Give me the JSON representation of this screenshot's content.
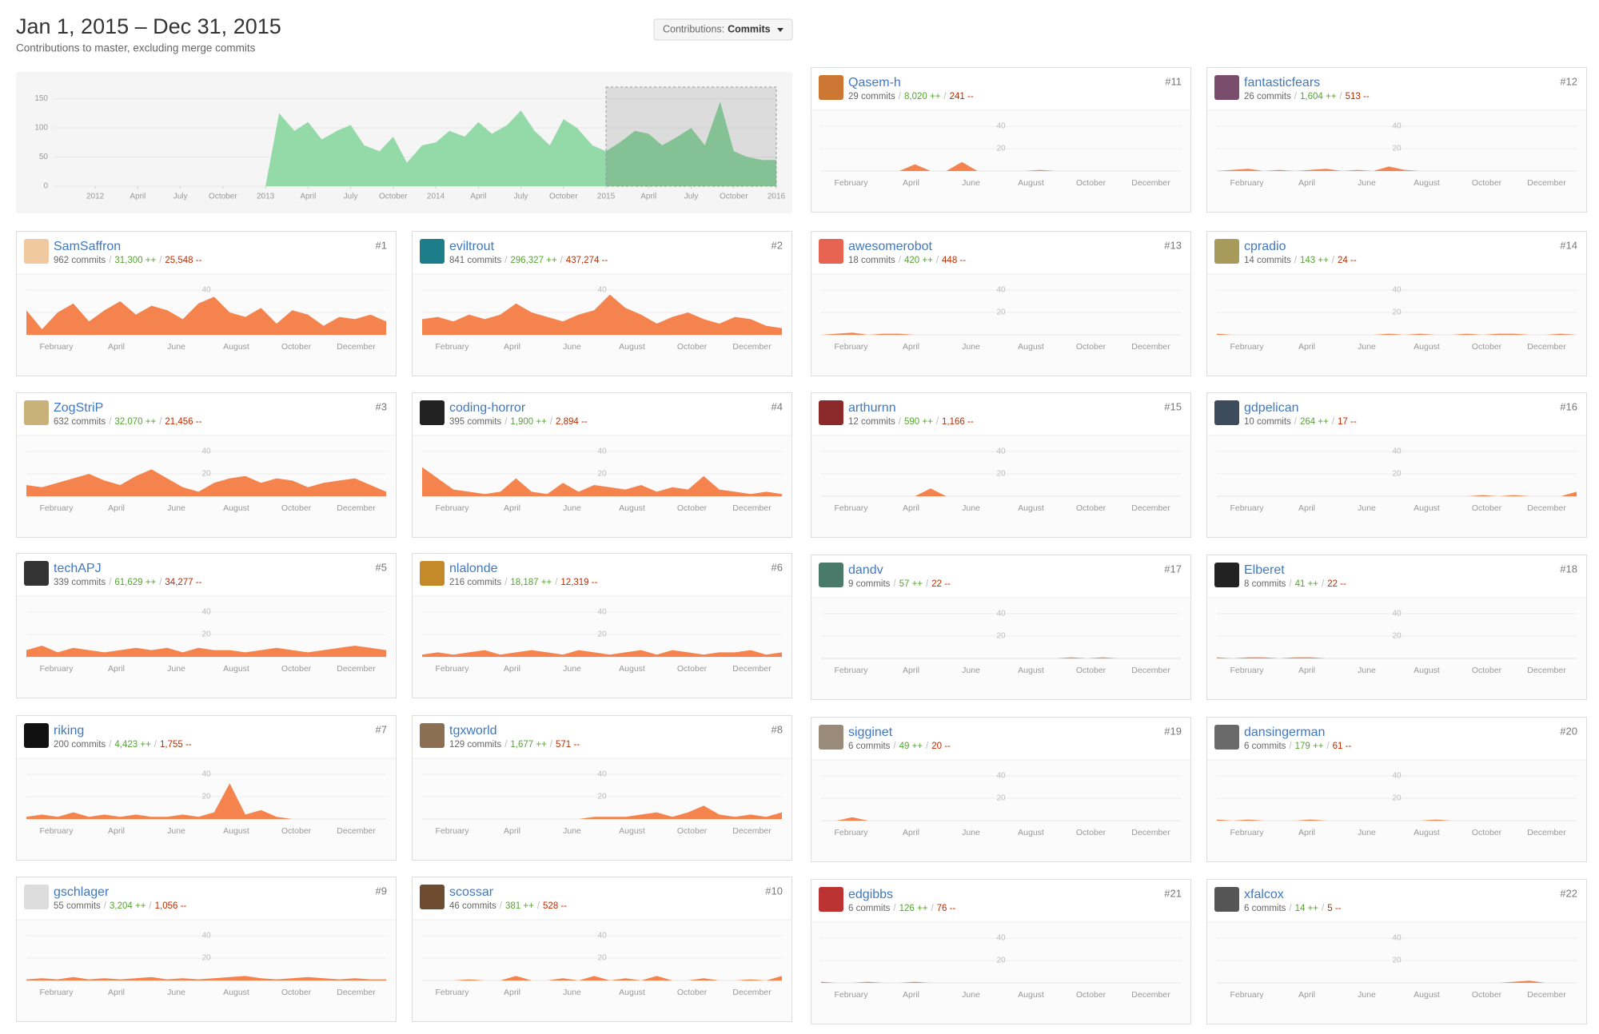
{
  "header": {
    "title": "Jan 1, 2015 – Dec 31, 2015",
    "subtitle": "Contributions to master, excluding merge commits",
    "dropdown_label": "Contributions:",
    "dropdown_value": "Commits"
  },
  "overview": {
    "type": "area",
    "color": "#94d9a8",
    "selection_color": "#79c48f",
    "grid": true,
    "xlim": [
      2011.76,
      2016
    ],
    "ylim": [
      0,
      170
    ],
    "yticks": [
      0,
      50,
      100,
      150
    ],
    "xticks": [
      2012,
      {
        "value": 2012.25,
        "label": "April"
      },
      {
        "value": 2012.5,
        "label": "July"
      },
      {
        "value": 2012.75,
        "label": "October"
      },
      2013,
      {
        "value": 2013.25,
        "label": "April"
      },
      {
        "value": 2013.5,
        "label": "July"
      },
      {
        "value": 2013.75,
        "label": "October"
      },
      2014,
      {
        "value": 2014.25,
        "label": "April"
      },
      {
        "value": 2014.5,
        "label": "July"
      },
      {
        "value": 2014.75,
        "label": "October"
      },
      2015,
      {
        "value": 2015.25,
        "label": "April"
      },
      {
        "value": 2015.5,
        "label": "July"
      },
      {
        "value": 2015.75,
        "label": "October"
      },
      2016
    ],
    "selection": [
      2015,
      2016
    ],
    "x": [
      2013,
      2013.08,
      2013.17,
      2013.25,
      2013.33,
      2013.42,
      2013.5,
      2013.58,
      2013.67,
      2013.75,
      2013.83,
      2013.92,
      2014,
      2014.08,
      2014.17,
      2014.25,
      2014.33,
      2014.42,
      2014.5,
      2014.58,
      2014.67,
      2014.75,
      2014.83,
      2014.92,
      2015,
      2015.08,
      2015.17,
      2015.25,
      2015.33,
      2015.42,
      2015.5,
      2015.58,
      2015.67,
      2015.75,
      2015.83,
      2015.92,
      2016
    ],
    "values": [
      0,
      125,
      95,
      110,
      80,
      95,
      105,
      70,
      60,
      85,
      40,
      70,
      75,
      95,
      85,
      110,
      90,
      105,
      130,
      95,
      70,
      115,
      100,
      70,
      60,
      75,
      95,
      90,
      70,
      85,
      100,
      70,
      145,
      60,
      50,
      45,
      45
    ]
  },
  "card_chart": {
    "type": "area",
    "color": "#f4834d",
    "ylim": [
      0,
      50
    ],
    "yticks": [
      20,
      40
    ],
    "months": [
      "February",
      "April",
      "June",
      "August",
      "October",
      "December"
    ]
  },
  "stats_separator": "/",
  "contributors": [
    {
      "rank": "#1",
      "name": "SamSaffron",
      "commits": "962 commits",
      "additions": "31,300 ++",
      "deletions": "25,548 --",
      "values": [
        22,
        5,
        20,
        28,
        12,
        22,
        30,
        18,
        26,
        22,
        14,
        28,
        34,
        20,
        16,
        24,
        10,
        22,
        18,
        8,
        16,
        14,
        18,
        12
      ]
    },
    {
      "rank": "#2",
      "name": "eviltrout",
      "commits": "841 commits",
      "additions": "296,327 ++",
      "deletions": "437,274 --",
      "values": [
        14,
        16,
        12,
        18,
        14,
        18,
        28,
        20,
        16,
        12,
        18,
        22,
        36,
        24,
        18,
        10,
        16,
        20,
        14,
        10,
        16,
        14,
        8,
        6
      ]
    },
    {
      "rank": "#3",
      "name": "ZogStriP",
      "commits": "632 commits",
      "additions": "32,070 ++",
      "deletions": "21,456 --",
      "values": [
        10,
        8,
        12,
        16,
        20,
        14,
        10,
        18,
        24,
        16,
        8,
        4,
        12,
        16,
        18,
        12,
        16,
        14,
        8,
        12,
        14,
        16,
        10,
        4
      ]
    },
    {
      "rank": "#4",
      "name": "coding-horror",
      "commits": "395 commits",
      "additions": "1,900 ++",
      "deletions": "2,894 --",
      "values": [
        26,
        16,
        6,
        4,
        2,
        4,
        16,
        4,
        2,
        12,
        4,
        10,
        8,
        6,
        10,
        4,
        8,
        6,
        18,
        6,
        4,
        2,
        4,
        2
      ]
    },
    {
      "rank": "#5",
      "name": "techAPJ",
      "commits": "339 commits",
      "additions": "61,629 ++",
      "deletions": "34,277 --",
      "values": [
        6,
        10,
        4,
        8,
        6,
        4,
        6,
        8,
        6,
        8,
        4,
        8,
        6,
        6,
        4,
        6,
        8,
        6,
        4,
        6,
        8,
        10,
        8,
        6
      ]
    },
    {
      "rank": "#6",
      "name": "nlalonde",
      "commits": "216 commits",
      "additions": "18,187 ++",
      "deletions": "12,319 --",
      "values": [
        2,
        4,
        2,
        4,
        6,
        2,
        4,
        6,
        4,
        2,
        6,
        4,
        2,
        4,
        6,
        2,
        6,
        4,
        2,
        4,
        4,
        6,
        2,
        4
      ]
    },
    {
      "rank": "#7",
      "name": "riking",
      "commits": "200 commits",
      "additions": "4,423 ++",
      "deletions": "1,755 --",
      "values": [
        2,
        4,
        2,
        6,
        2,
        4,
        2,
        4,
        2,
        2,
        4,
        2,
        6,
        32,
        4,
        8,
        2,
        0,
        0,
        0,
        0,
        0,
        0,
        0
      ]
    },
    {
      "rank": "#8",
      "name": "tgxworld",
      "commits": "129 commits",
      "additions": "1,677 ++",
      "deletions": "571 --",
      "values": [
        0,
        0,
        0,
        0,
        0,
        0,
        0,
        0,
        0,
        0,
        0,
        2,
        2,
        2,
        4,
        6,
        2,
        6,
        12,
        4,
        2,
        4,
        2,
        6
      ]
    },
    {
      "rank": "#9",
      "name": "gschlager",
      "commits": "55 commits",
      "additions": "3,204 ++",
      "deletions": "1,056 --",
      "values": [
        1,
        2,
        1,
        3,
        1,
        2,
        1,
        2,
        3,
        1,
        2,
        1,
        2,
        3,
        4,
        2,
        1,
        2,
        3,
        2,
        1,
        2,
        1,
        1
      ]
    },
    {
      "rank": "#10",
      "name": "scossar",
      "commits": "46 commits",
      "additions": "381 ++",
      "deletions": "528 --",
      "values": [
        0,
        0,
        0,
        1,
        0,
        0,
        4,
        0,
        0,
        2,
        0,
        4,
        0,
        2,
        0,
        4,
        0,
        0,
        2,
        0,
        0,
        1,
        0,
        4
      ]
    },
    {
      "rank": "#11",
      "name": "Qasem-h",
      "commits": "29 commits",
      "additions": "8,020 ++",
      "deletions": "241 --",
      "values": [
        0,
        0,
        0,
        0,
        0,
        0,
        6,
        0,
        0,
        8,
        0,
        0,
        0,
        0,
        1,
        0,
        0,
        0,
        0,
        0,
        0,
        0,
        0,
        0
      ]
    },
    {
      "rank": "#12",
      "name": "fantasticfears",
      "commits": "26 commits",
      "additions": "1,604 ++",
      "deletions": "513 --",
      "values": [
        0,
        1,
        2,
        0,
        1,
        0,
        1,
        2,
        0,
        1,
        0,
        4,
        1,
        0,
        0,
        0,
        0,
        0,
        0,
        0,
        0,
        0,
        0,
        0
      ]
    },
    {
      "rank": "#13",
      "name": "awesomerobot",
      "commits": "18 commits",
      "additions": "420 ++",
      "deletions": "448 --",
      "values": [
        0,
        1,
        2,
        0,
        1,
        1,
        0,
        0,
        0,
        0,
        0,
        0,
        0,
        0,
        0,
        0,
        0,
        0,
        0,
        0,
        0,
        0,
        0,
        0
      ]
    },
    {
      "rank": "#14",
      "name": "cpradio",
      "commits": "14 commits",
      "additions": "143 ++",
      "deletions": "24 --",
      "values": [
        1,
        0,
        0,
        0,
        0,
        0,
        0,
        0,
        0,
        0,
        0,
        1,
        0,
        1,
        0,
        0,
        1,
        0,
        1,
        1,
        0,
        0,
        1,
        0
      ]
    },
    {
      "rank": "#15",
      "name": "arthurnn",
      "commits": "12 commits",
      "additions": "590 ++",
      "deletions": "1,166 --",
      "values": [
        0,
        0,
        0,
        0,
        0,
        0,
        0,
        7,
        0,
        0,
        0,
        0,
        0,
        0,
        0,
        0,
        0,
        0,
        0,
        0,
        0,
        0,
        0,
        0
      ]
    },
    {
      "rank": "#16",
      "name": "gdpelican",
      "commits": "10 commits",
      "additions": "264 ++",
      "deletions": "17 --",
      "values": [
        0,
        0,
        0,
        0,
        0,
        0,
        0,
        0,
        0,
        0,
        0,
        0,
        0,
        0,
        0,
        0,
        0,
        1,
        0,
        1,
        0,
        0,
        0,
        4
      ]
    },
    {
      "rank": "#17",
      "name": "dandv",
      "commits": "9 commits",
      "additions": "57 ++",
      "deletions": "22 --",
      "values": [
        0,
        0,
        0,
        0,
        0,
        0,
        0,
        0,
        0,
        0,
        0,
        0,
        0,
        0,
        0,
        0,
        1,
        0,
        1,
        0,
        0,
        0,
        0,
        0
      ]
    },
    {
      "rank": "#18",
      "name": "Elberet",
      "commits": "8 commits",
      "additions": "41 ++",
      "deletions": "22 --",
      "values": [
        1,
        0,
        1,
        1,
        0,
        1,
        1,
        0,
        0,
        0,
        0,
        0,
        0,
        0,
        0,
        0,
        0,
        0,
        0,
        0,
        0,
        0,
        0,
        0
      ]
    },
    {
      "rank": "#19",
      "name": "sigginet",
      "commits": "6 commits",
      "additions": "49 ++",
      "deletions": "20 --",
      "values": [
        0,
        0,
        3,
        0,
        0,
        0,
        0,
        0,
        0,
        0,
        0,
        0,
        0,
        0,
        0,
        0,
        0,
        0,
        0,
        0,
        0,
        0,
        0,
        0
      ]
    },
    {
      "rank": "#20",
      "name": "dansingerman",
      "commits": "6 commits",
      "additions": "179 ++",
      "deletions": "61 --",
      "values": [
        1,
        0,
        1,
        0,
        0,
        0,
        1,
        0,
        0,
        0,
        0,
        0,
        0,
        0,
        1,
        0,
        0,
        0,
        0,
        0,
        0,
        0,
        0,
        0
      ]
    },
    {
      "rank": "#21",
      "name": "edgibbs",
      "commits": "6 commits",
      "additions": "126 ++",
      "deletions": "76 --",
      "values": [
        1,
        0,
        0,
        1,
        0,
        0,
        1,
        0,
        0,
        0,
        0,
        0,
        0,
        0,
        0,
        0,
        0,
        0,
        0,
        0,
        0,
        0,
        0,
        0
      ]
    },
    {
      "rank": "#22",
      "name": "xfalcox",
      "commits": "6 commits",
      "additions": "14 ++",
      "deletions": "5 --",
      "values": [
        0,
        0,
        0,
        0,
        0,
        0,
        0,
        0,
        0,
        0,
        0,
        0,
        0,
        0,
        0,
        0,
        0,
        0,
        0,
        1,
        2,
        0,
        0,
        0
      ]
    }
  ]
}
